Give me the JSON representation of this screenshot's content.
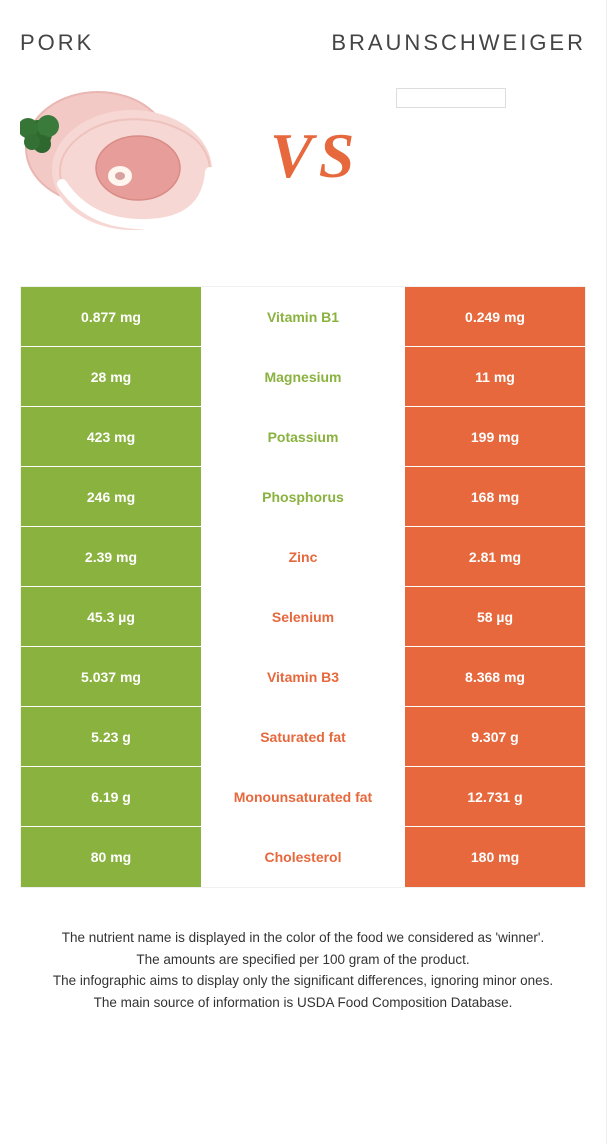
{
  "colors": {
    "left": "#8ab23f",
    "right": "#e6683c",
    "vs": "#e6683c",
    "page_bg": "#ffffff",
    "row_border": "#ffffff",
    "table_border": "#f0f0f0"
  },
  "header": {
    "left_title": "Pork",
    "right_title": "Braunschweiger"
  },
  "vs_label": "VS",
  "table": {
    "rows": [
      {
        "left": "0.877 mg",
        "name": "Vitamin B1",
        "right": "0.249 mg",
        "winner": "left"
      },
      {
        "left": "28 mg",
        "name": "Magnesium",
        "right": "11 mg",
        "winner": "left"
      },
      {
        "left": "423 mg",
        "name": "Potassium",
        "right": "199 mg",
        "winner": "left"
      },
      {
        "left": "246 mg",
        "name": "Phosphorus",
        "right": "168 mg",
        "winner": "left"
      },
      {
        "left": "2.39 mg",
        "name": "Zinc",
        "right": "2.81 mg",
        "winner": "right"
      },
      {
        "left": "45.3 µg",
        "name": "Selenium",
        "right": "58 µg",
        "winner": "right"
      },
      {
        "left": "5.037 mg",
        "name": "Vitamin B3",
        "right": "8.368 mg",
        "winner": "right"
      },
      {
        "left": "5.23 g",
        "name": "Saturated fat",
        "right": "9.307 g",
        "winner": "right"
      },
      {
        "left": "6.19 g",
        "name": "Monounsaturated fat",
        "right": "12.731 g",
        "winner": "right"
      },
      {
        "left": "80 mg",
        "name": "Cholesterol",
        "right": "180 mg",
        "winner": "right"
      }
    ]
  },
  "notes": [
    "The nutrient name is displayed in the color of the food we considered as 'winner'.",
    "The amounts are specified per 100 gram of the product.",
    "The infographic aims to display only the significant differences, ignoring minor ones.",
    "The main source of information is USDA Food Composition Database."
  ]
}
